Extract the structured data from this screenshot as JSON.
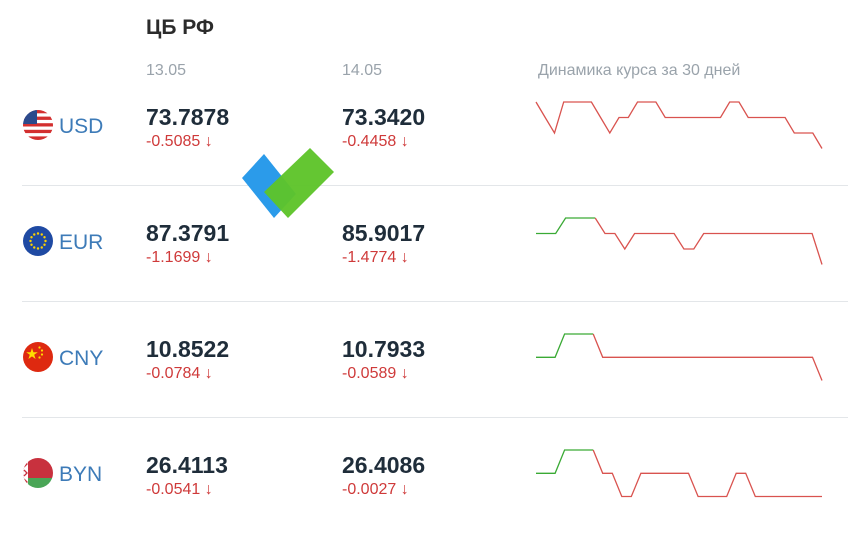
{
  "header": {
    "title": "ЦБ РФ",
    "date1": "13.05",
    "date2": "14.05",
    "chart_caption": "Динамика курса за 30 дней"
  },
  "rows": [
    {
      "code": "USD",
      "flag_icon": "usa-flag-icon",
      "rate1": "73.7878",
      "change1": "-0.5085 ↓",
      "rate2": "73.3420",
      "change2": "-0.4458 ↓",
      "trend": [
        {
          "y": [
            96,
            97,
            98,
            96,
            96,
            96,
            96,
            97,
            98,
            97,
            97,
            96,
            96,
            96,
            97,
            97,
            97,
            97,
            97,
            97,
            97,
            96,
            96,
            97,
            97,
            97,
            97,
            97,
            98,
            98,
            98,
            99
          ],
          "c": "#d9534f"
        }
      ]
    },
    {
      "code": "EUR",
      "flag_icon": "eu-flag-icon",
      "rate1": "87.3791",
      "change1": "-1.1699 ↓",
      "rate2": "85.9017",
      "change2": "-1.4774 ↓",
      "trend": [
        {
          "y": [
            82,
            82,
            82,
            81,
            81,
            81,
            81
          ],
          "c": "#3aaa35"
        },
        {
          "y": [
            81,
            82,
            82,
            83,
            82,
            82,
            82,
            82,
            82,
            83,
            83,
            82,
            82,
            82,
            82,
            82,
            82,
            82,
            82,
            82,
            82,
            82,
            82,
            84
          ],
          "c": "#d9534f"
        }
      ]
    },
    {
      "code": "CNY",
      "flag_icon": "china-flag-icon",
      "rate1": "10.8522",
      "change1": "-0.0784 ↓",
      "rate2": "10.7933",
      "change2": "-0.0589 ↓",
      "trend": [
        {
          "y": [
            11,
            11,
            11,
            10,
            10,
            10,
            10
          ],
          "c": "#3aaa35"
        },
        {
          "y": [
            10,
            11,
            11,
            11,
            11,
            11,
            11,
            11,
            11,
            11,
            11,
            11,
            11,
            11,
            11,
            11,
            11,
            11,
            11,
            11,
            11,
            11,
            11,
            11,
            12
          ],
          "c": "#d9534f"
        }
      ]
    },
    {
      "code": "BYN",
      "flag_icon": "belarus-flag-icon",
      "rate1": "26.4113",
      "change1": "-0.0541 ↓",
      "rate2": "26.4086",
      "change2": "-0.0027 ↓",
      "trend": [
        {
          "y": [
            27,
            27,
            27,
            26,
            26,
            26,
            26
          ],
          "c": "#3aaa35"
        },
        {
          "y": [
            26,
            27,
            27,
            28,
            28,
            27,
            27,
            27,
            27,
            27,
            27,
            28,
            28,
            28,
            28,
            27,
            27,
            28,
            28,
            28,
            28,
            28,
            28,
            28,
            28
          ],
          "c": "#d9534f"
        }
      ]
    }
  ],
  "overlay": {
    "logo_icon": "checkmark-logo-icon",
    "colors": {
      "blue": "#2b9bea",
      "green": "#5ec42a"
    }
  },
  "colors": {
    "down": "#cf3a3a",
    "link": "#3d7bb8",
    "up_line": "#3aaa35",
    "down_line": "#d9534f"
  }
}
